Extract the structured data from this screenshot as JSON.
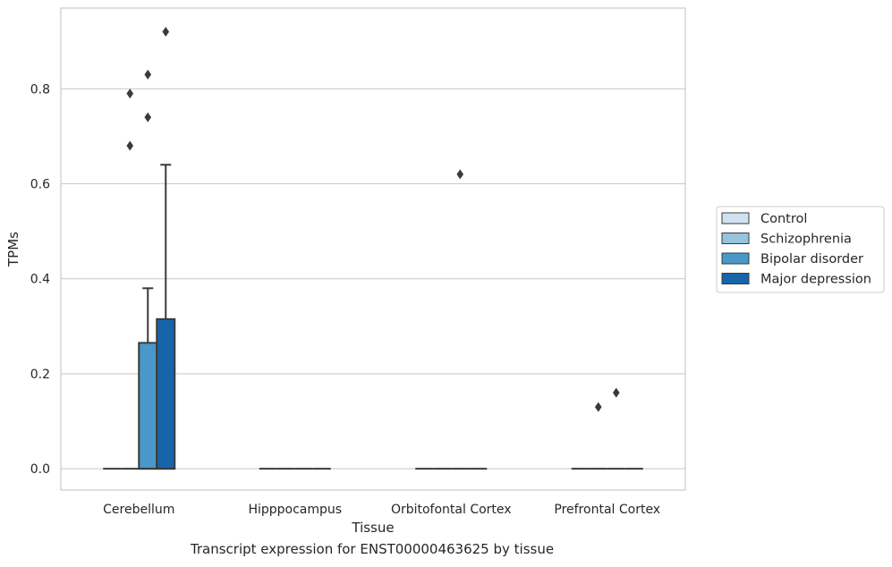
{
  "caption": "Transcript expression for ENST00000463625 by tissue",
  "chart_data": {
    "type": "box",
    "xlabel": "Tissue",
    "ylabel": "TPMs",
    "ylim": [
      -0.045,
      0.97
    ],
    "yticks": [
      0.0,
      0.2,
      0.4,
      0.6,
      0.8
    ],
    "ytick_labels": [
      "0.0",
      "0.2",
      "0.4",
      "0.6",
      "0.8"
    ],
    "categories": [
      "Cerebellum",
      "Hipppocampus",
      "Orbitofontal Cortex",
      "Prefrontal Cortex"
    ],
    "grid": "horizontal",
    "legend_position": "right",
    "series": [
      {
        "name": "Control",
        "color": "#d0e1f2",
        "boxes": [
          {
            "q1": 0.0,
            "median": 0.0,
            "q3": 0.0,
            "whisker_low": 0.0,
            "whisker_high": 0.0,
            "outliers": []
          },
          {
            "q1": 0.0,
            "median": 0.0,
            "q3": 0.0,
            "whisker_low": 0.0,
            "whisker_high": 0.0,
            "outliers": []
          },
          {
            "q1": 0.0,
            "median": 0.0,
            "q3": 0.0,
            "whisker_low": 0.0,
            "whisker_high": 0.0,
            "outliers": []
          },
          {
            "q1": 0.0,
            "median": 0.0,
            "q3": 0.0,
            "whisker_low": 0.0,
            "whisker_high": 0.0,
            "outliers": []
          }
        ]
      },
      {
        "name": "Schizophrenia",
        "color": "#94c4df",
        "boxes": [
          {
            "q1": 0.0,
            "median": 0.0,
            "q3": 0.0,
            "whisker_low": 0.0,
            "whisker_high": 0.0,
            "outliers": [
              0.68,
              0.79
            ]
          },
          {
            "q1": 0.0,
            "median": 0.0,
            "q3": 0.0,
            "whisker_low": 0.0,
            "whisker_high": 0.0,
            "outliers": []
          },
          {
            "q1": 0.0,
            "median": 0.0,
            "q3": 0.0,
            "whisker_low": 0.0,
            "whisker_high": 0.0,
            "outliers": []
          },
          {
            "q1": 0.0,
            "median": 0.0,
            "q3": 0.0,
            "whisker_low": 0.0,
            "whisker_high": 0.0,
            "outliers": [
              0.13
            ]
          }
        ]
      },
      {
        "name": "Bipolar disorder",
        "color": "#4a98c9",
        "boxes": [
          {
            "q1": 0.0,
            "median": 0.0,
            "q3": 0.265,
            "whisker_low": 0.0,
            "whisker_high": 0.38,
            "outliers": [
              0.74,
              0.83
            ]
          },
          {
            "q1": 0.0,
            "median": 0.0,
            "q3": 0.0,
            "whisker_low": 0.0,
            "whisker_high": 0.0,
            "outliers": []
          },
          {
            "q1": 0.0,
            "median": 0.0,
            "q3": 0.0,
            "whisker_low": 0.0,
            "whisker_high": 0.0,
            "outliers": [
              0.62
            ]
          },
          {
            "q1": 0.0,
            "median": 0.0,
            "q3": 0.0,
            "whisker_low": 0.0,
            "whisker_high": 0.0,
            "outliers": [
              0.16
            ]
          }
        ]
      },
      {
        "name": "Major depression",
        "color": "#1764ab",
        "boxes": [
          {
            "q1": 0.0,
            "median": 0.0,
            "q3": 0.315,
            "whisker_low": 0.0,
            "whisker_high": 0.64,
            "outliers": [
              0.92
            ]
          },
          {
            "q1": 0.0,
            "median": 0.0,
            "q3": 0.0,
            "whisker_low": 0.0,
            "whisker_high": 0.0,
            "outliers": []
          },
          {
            "q1": 0.0,
            "median": 0.0,
            "q3": 0.0,
            "whisker_low": 0.0,
            "whisker_high": 0.0,
            "outliers": []
          },
          {
            "q1": 0.0,
            "median": 0.0,
            "q3": 0.0,
            "whisker_low": 0.0,
            "whisker_high": 0.0,
            "outliers": []
          }
        ]
      }
    ]
  }
}
